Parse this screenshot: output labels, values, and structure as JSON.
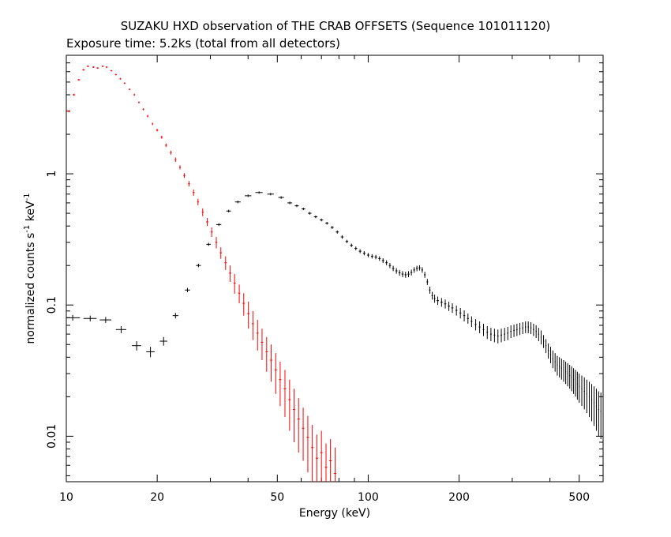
{
  "chart_data": {
    "type": "scatter",
    "title": "SUZAKU HXD observation of THE CRAB OFFSETS (Sequence 101011120)",
    "subtitle": "Exposure time: 5.2ks (total from all detectors)",
    "xlabel": "Energy (keV)",
    "ylabel": "normalized counts s",
    "ylabel_sup1": "-1",
    "ylabel_mid": " keV",
    "ylabel_sup2": "-1",
    "x_scale": "log",
    "y_scale": "log",
    "xlim": [
      10,
      600
    ],
    "ylim": [
      0.0045,
      8
    ],
    "x_ticks": [
      {
        "value": 10,
        "label": "10"
      },
      {
        "value": 20,
        "label": "20"
      },
      {
        "value": 50,
        "label": "50"
      },
      {
        "value": 100,
        "label": "100"
      },
      {
        "value": 200,
        "label": "200"
      },
      {
        "value": 500,
        "label": "500"
      }
    ],
    "y_ticks": [
      {
        "value": 0.01,
        "label": "0.01"
      },
      {
        "value": 0.1,
        "label": "0.1"
      },
      {
        "value": 1,
        "label": "1"
      }
    ],
    "grid": false,
    "legend": "none",
    "series": [
      {
        "color": "#ff0000",
        "points": [
          [
            10.2,
            3.0,
            0.1,
            0.06
          ],
          [
            10.6,
            4.0,
            0.1,
            0.07
          ],
          [
            11.0,
            5.2,
            0.1,
            0.08
          ],
          [
            11.4,
            6.2,
            0.1,
            0.09
          ],
          [
            11.8,
            6.6,
            0.1,
            0.09
          ],
          [
            12.3,
            6.5,
            0.1,
            0.09
          ],
          [
            12.7,
            6.4,
            0.1,
            0.09
          ],
          [
            13.2,
            6.6,
            0.1,
            0.09
          ],
          [
            13.6,
            6.5,
            0.1,
            0.09
          ],
          [
            14.1,
            6.1,
            0.1,
            0.08
          ],
          [
            14.6,
            5.7,
            0.1,
            0.08
          ],
          [
            15.1,
            5.3,
            0.1,
            0.08
          ],
          [
            15.6,
            4.9,
            0.1,
            0.07
          ],
          [
            16.2,
            4.4,
            0.1,
            0.07
          ],
          [
            16.8,
            4.0,
            0.1,
            0.07
          ],
          [
            17.4,
            3.5,
            0.1,
            0.06
          ],
          [
            18.0,
            3.1,
            0.1,
            0.06
          ],
          [
            18.6,
            2.75,
            0.1,
            0.06
          ],
          [
            19.3,
            2.4,
            0.1,
            0.05
          ],
          [
            20.0,
            2.15,
            0.15,
            0.05
          ],
          [
            20.7,
            1.9,
            0.15,
            0.05
          ],
          [
            21.4,
            1.65,
            0.15,
            0.05
          ],
          [
            22.2,
            1.45,
            0.15,
            0.05
          ],
          [
            23.0,
            1.28,
            0.15,
            0.05
          ],
          [
            23.8,
            1.12,
            0.15,
            0.04
          ],
          [
            24.6,
            0.97,
            0.2,
            0.04
          ],
          [
            25.5,
            0.84,
            0.2,
            0.04
          ],
          [
            26.4,
            0.72,
            0.2,
            0.04
          ],
          [
            27.3,
            0.61,
            0.2,
            0.035
          ],
          [
            28.3,
            0.51,
            0.2,
            0.035
          ],
          [
            29.3,
            0.43,
            0.25,
            0.03
          ],
          [
            30.3,
            0.36,
            0.25,
            0.03
          ],
          [
            31.4,
            0.3,
            0.25,
            0.03
          ],
          [
            32.5,
            0.25,
            0.25,
            0.025
          ],
          [
            33.7,
            0.21,
            0.3,
            0.025
          ],
          [
            34.9,
            0.175,
            0.3,
            0.025
          ],
          [
            36.1,
            0.147,
            0.3,
            0.025
          ],
          [
            37.4,
            0.123,
            0.3,
            0.02
          ],
          [
            38.7,
            0.103,
            0.35,
            0.02
          ],
          [
            40.1,
            0.086,
            0.35,
            0.02
          ],
          [
            41.5,
            0.072,
            0.35,
            0.018
          ],
          [
            43.0,
            0.061,
            0.35,
            0.016
          ],
          [
            44.5,
            0.052,
            0.4,
            0.014
          ],
          [
            46.1,
            0.044,
            0.4,
            0.013
          ],
          [
            47.7,
            0.038,
            0.4,
            0.012
          ],
          [
            49.4,
            0.032,
            0.45,
            0.011
          ],
          [
            51.1,
            0.027,
            0.45,
            0.01
          ],
          [
            53.0,
            0.023,
            0.5,
            0.009
          ],
          [
            54.9,
            0.019,
            0.5,
            0.008
          ],
          [
            56.8,
            0.016,
            0.5,
            0.007
          ],
          [
            58.8,
            0.0135,
            0.55,
            0.006
          ],
          [
            60.9,
            0.0115,
            0.55,
            0.005
          ],
          [
            63.1,
            0.0098,
            0.6,
            0.0045
          ],
          [
            65.3,
            0.0082,
            0.6,
            0.004
          ],
          [
            67.6,
            0.0068,
            0.65,
            0.0035
          ],
          [
            70.0,
            0.0075,
            0.65,
            0.0035
          ],
          [
            72.5,
            0.0058,
            0.7,
            0.003
          ],
          [
            75.0,
            0.0065,
            0.7,
            0.003
          ],
          [
            77.7,
            0.0052,
            0.75,
            0.003
          ]
        ]
      },
      {
        "color": "#000000",
        "points": [
          [
            10.5,
            0.08,
            0.6,
            0.004
          ],
          [
            12.0,
            0.079,
            0.6,
            0.004
          ],
          [
            13.5,
            0.077,
            0.6,
            0.004
          ],
          [
            15.2,
            0.065,
            0.6,
            0.004
          ],
          [
            17.1,
            0.049,
            0.6,
            0.004
          ],
          [
            19.0,
            0.044,
            0.6,
            0.004
          ],
          [
            21.0,
            0.053,
            0.6,
            0.004
          ],
          [
            23.0,
            0.083,
            0.5,
            0.004
          ],
          [
            25.2,
            0.13,
            0.5,
            0.005
          ],
          [
            27.4,
            0.2,
            0.5,
            0.006
          ],
          [
            29.6,
            0.29,
            0.5,
            0.008
          ],
          [
            32.0,
            0.41,
            0.6,
            0.01
          ],
          [
            34.5,
            0.52,
            0.6,
            0.012
          ],
          [
            37.0,
            0.61,
            0.8,
            0.014
          ],
          [
            40.0,
            0.68,
            1.0,
            0.015
          ],
          [
            43.5,
            0.72,
            1.2,
            0.015
          ],
          [
            47.5,
            0.7,
            1.2,
            0.015
          ],
          [
            51.5,
            0.66,
            1.1,
            0.015
          ],
          [
            55.0,
            0.6,
            1.0,
            0.014
          ],
          [
            58.0,
            0.57,
            0.9,
            0.013
          ],
          [
            61.0,
            0.54,
            0.9,
            0.012
          ],
          [
            64.0,
            0.5,
            0.9,
            0.012
          ],
          [
            67.0,
            0.47,
            0.9,
            0.011
          ],
          [
            70.0,
            0.445,
            0.9,
            0.011
          ],
          [
            73.0,
            0.42,
            0.9,
            0.01
          ],
          [
            76.0,
            0.39,
            0.9,
            0.01
          ],
          [
            79.0,
            0.36,
            0.9,
            0.01
          ],
          [
            82.0,
            0.33,
            0.9,
            0.01
          ],
          [
            85.0,
            0.305,
            0.9,
            0.009
          ],
          [
            88.0,
            0.285,
            0.9,
            0.009
          ],
          [
            91.0,
            0.27,
            0.9,
            0.009
          ],
          [
            94.0,
            0.257,
            0.9,
            0.009
          ],
          [
            97.0,
            0.248,
            0.9,
            0.009
          ],
          [
            100.0,
            0.24,
            0.9,
            0.009
          ],
          [
            103.0,
            0.235,
            0.9,
            0.009
          ],
          [
            106.0,
            0.232,
            1.0,
            0.009
          ],
          [
            109.0,
            0.226,
            1.0,
            0.009
          ],
          [
            112.0,
            0.218,
            1.0,
            0.009
          ],
          [
            115.0,
            0.21,
            1.0,
            0.009
          ],
          [
            118.0,
            0.2,
            1.0,
            0.009
          ],
          [
            121.0,
            0.19,
            1.0,
            0.009
          ],
          [
            124.0,
            0.182,
            1.0,
            0.009
          ],
          [
            127.0,
            0.176,
            1.0,
            0.009
          ],
          [
            130.0,
            0.172,
            1.0,
            0.009
          ],
          [
            133.0,
            0.17,
            1.0,
            0.009
          ],
          [
            136.0,
            0.172,
            1.0,
            0.009
          ],
          [
            139.0,
            0.177,
            1.0,
            0.009
          ],
          [
            142.0,
            0.185,
            1.0,
            0.009
          ],
          [
            145.0,
            0.19,
            1.0,
            0.009
          ],
          [
            148.0,
            0.192,
            1.0,
            0.009
          ],
          [
            151.0,
            0.185,
            1.0,
            0.009
          ],
          [
            154.0,
            0.17,
            1.0,
            0.009
          ],
          [
            157.0,
            0.15,
            1.0,
            0.008
          ],
          [
            160.0,
            0.13,
            1.0,
            0.008
          ],
          [
            163.0,
            0.118,
            1.0,
            0.008
          ],
          [
            166.0,
            0.112,
            1.0,
            0.008
          ],
          [
            170.0,
            0.108,
            1.5,
            0.008
          ],
          [
            175.0,
            0.105,
            1.5,
            0.008
          ],
          [
            180.0,
            0.102,
            1.5,
            0.008
          ],
          [
            185.0,
            0.098,
            1.5,
            0.008
          ],
          [
            190.0,
            0.095,
            1.5,
            0.008
          ],
          [
            196.0,
            0.091,
            1.5,
            0.008
          ],
          [
            202.0,
            0.087,
            1.5,
            0.008
          ],
          [
            208.0,
            0.083,
            1.5,
            0.008
          ],
          [
            214.0,
            0.079,
            1.5,
            0.007
          ],
          [
            220.0,
            0.075,
            1.5,
            0.007
          ],
          [
            227.0,
            0.071,
            1.5,
            0.007
          ],
          [
            234.0,
            0.068,
            1.5,
            0.007
          ],
          [
            241.0,
            0.065,
            1.5,
            0.007
          ],
          [
            248.0,
            0.062,
            1.5,
            0.007
          ],
          [
            255.0,
            0.06,
            1.5,
            0.007
          ],
          [
            262.0,
            0.059,
            1.5,
            0.007
          ],
          [
            269.0,
            0.058,
            1.5,
            0.007
          ],
          [
            276.0,
            0.059,
            1.5,
            0.007
          ],
          [
            283.0,
            0.06,
            1.5,
            0.007
          ],
          [
            290.0,
            0.061,
            1.5,
            0.007
          ],
          [
            297.0,
            0.063,
            1.5,
            0.007
          ],
          [
            304.0,
            0.064,
            1.5,
            0.007
          ],
          [
            311.0,
            0.065,
            1.5,
            0.007
          ],
          [
            318.0,
            0.066,
            1.5,
            0.007
          ],
          [
            325.0,
            0.067,
            1.5,
            0.007
          ],
          [
            332.0,
            0.068,
            1.5,
            0.007
          ],
          [
            339.0,
            0.068,
            1.5,
            0.007
          ],
          [
            346.0,
            0.067,
            1.5,
            0.007
          ],
          [
            353.0,
            0.065,
            1.5,
            0.007
          ],
          [
            360.0,
            0.063,
            1.5,
            0.007
          ],
          [
            367.0,
            0.06,
            1.5,
            0.007
          ],
          [
            374.0,
            0.057,
            1.5,
            0.007
          ],
          [
            381.0,
            0.053,
            1.5,
            0.006
          ],
          [
            388.0,
            0.049,
            1.5,
            0.006
          ],
          [
            395.0,
            0.045,
            1.5,
            0.006
          ],
          [
            402.0,
            0.042,
            1.5,
            0.006
          ],
          [
            409.0,
            0.039,
            1.5,
            0.006
          ],
          [
            416.0,
            0.037,
            1.5,
            0.006
          ],
          [
            423.0,
            0.035,
            1.5,
            0.006
          ],
          [
            430.0,
            0.034,
            1.5,
            0.006
          ],
          [
            437.0,
            0.033,
            1.5,
            0.006
          ],
          [
            444.0,
            0.032,
            1.5,
            0.006
          ],
          [
            451.0,
            0.031,
            1.5,
            0.006
          ],
          [
            458.0,
            0.03,
            1.5,
            0.006
          ],
          [
            465.0,
            0.029,
            1.5,
            0.006
          ],
          [
            472.0,
            0.028,
            1.5,
            0.006
          ],
          [
            479.0,
            0.027,
            1.5,
            0.006
          ],
          [
            486.0,
            0.026,
            1.5,
            0.006
          ],
          [
            493.0,
            0.025,
            1.5,
            0.006
          ],
          [
            500.0,
            0.024,
            1.5,
            0.006
          ],
          [
            510.0,
            0.023,
            2.0,
            0.006
          ],
          [
            520.0,
            0.022,
            2.0,
            0.006
          ],
          [
            530.0,
            0.021,
            2.0,
            0.006
          ],
          [
            540.0,
            0.02,
            2.0,
            0.006
          ],
          [
            550.0,
            0.019,
            2.0,
            0.006
          ],
          [
            560.0,
            0.018,
            2.0,
            0.006
          ],
          [
            570.0,
            0.017,
            2.0,
            0.006
          ],
          [
            580.0,
            0.016,
            2.0,
            0.006
          ],
          [
            590.0,
            0.0155,
            2.0,
            0.006
          ]
        ]
      }
    ]
  }
}
